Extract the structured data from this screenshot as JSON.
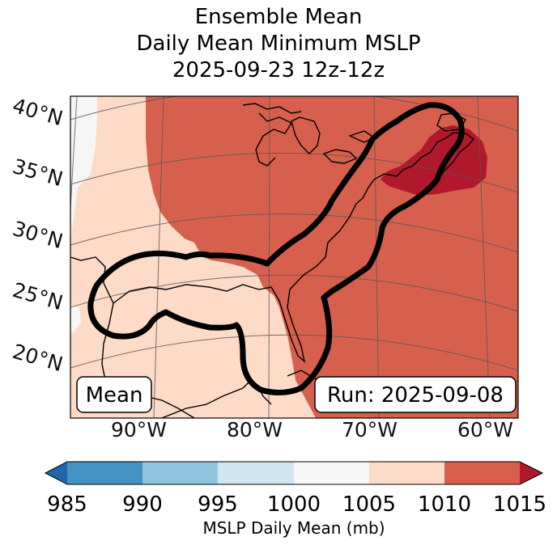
{
  "title": {
    "line1": "Ensemble Mean",
    "line2": "Daily Mean Minimum MSLP",
    "line3": "2025-09-23 12z-12z"
  },
  "map": {
    "lat_labels": [
      "40°N",
      "35°N",
      "30°N",
      "25°N",
      "20°N"
    ],
    "lon_labels": [
      "90°W",
      "80°W",
      "70°W",
      "60°W"
    ],
    "mean_label": "Mean",
    "run_label": "Run: 2025-09-08",
    "colors": {
      "c1000_1005": "#f6f6f6",
      "c1005_1010": "#fddbc7",
      "c1010_1015": "#d6604d",
      "c_over_1015": "#b2182b",
      "contour": "#000000",
      "coast": "#000000"
    }
  },
  "colorbar": {
    "label": "MSLP Daily Mean (mb)",
    "ticks": [
      "985",
      "990",
      "995",
      "1000",
      "1005",
      "1010",
      "1015"
    ],
    "bins": [
      {
        "range": "<985",
        "color": "#2166ac"
      },
      {
        "range": "985-990",
        "color": "#4393c3"
      },
      {
        "range": "990-995",
        "color": "#92c5de"
      },
      {
        "range": "995-1000",
        "color": "#d1e5f0"
      },
      {
        "range": "1000-1005",
        "color": "#f7f7f7"
      },
      {
        "range": "1005-1010",
        "color": "#fddbc7"
      },
      {
        "range": "1010-1015",
        "color": "#d6604d"
      },
      {
        "range": ">1015",
        "color": "#b2182b"
      }
    ]
  }
}
